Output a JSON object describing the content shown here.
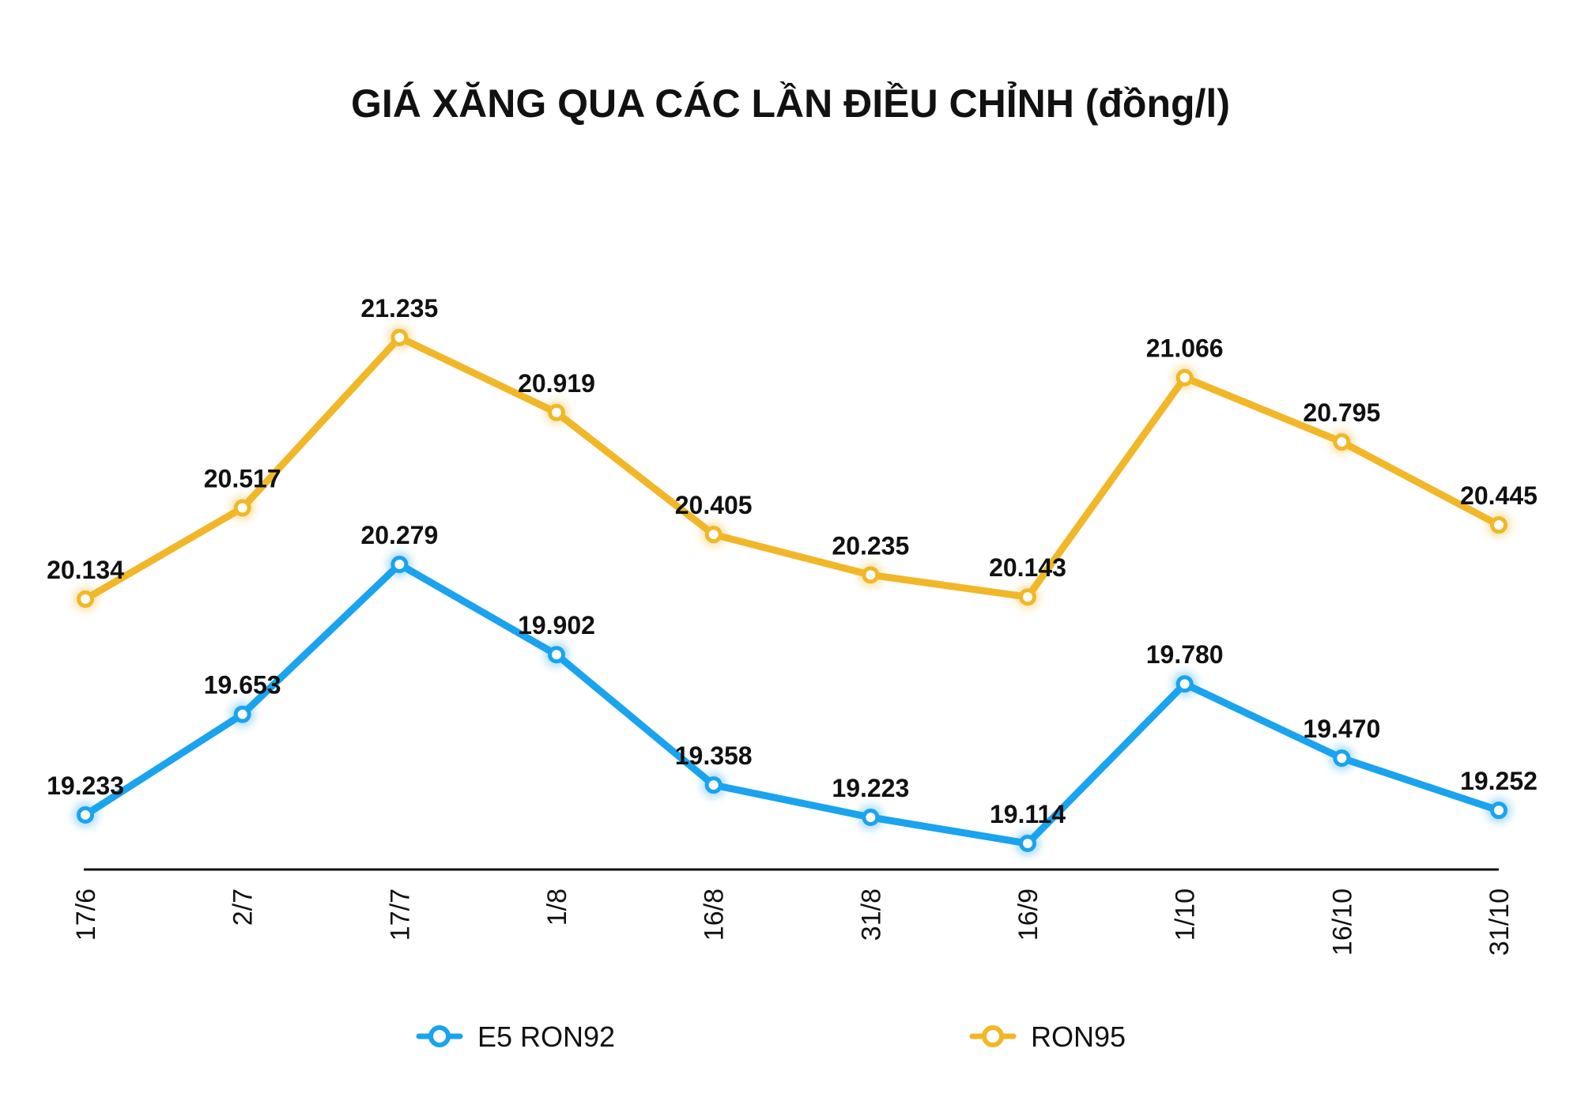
{
  "chart_data": {
    "type": "line",
    "title": "GIÁ XĂNG QUA CÁC LẦN ĐIỀU CHỈNH (đồng/l)",
    "xlabel": "",
    "ylabel": "",
    "categories": [
      "17/6",
      "2/7",
      "17/7",
      "1/8",
      "16/8",
      "31/8",
      "16/9",
      "1/10",
      "16/10",
      "31/10"
    ],
    "series": [
      {
        "name": "E5 RON92",
        "color": "#1aa3ef",
        "values": [
          19233,
          19653,
          20279,
          19902,
          19358,
          19223,
          19114,
          19780,
          19470,
          19252
        ],
        "labels": [
          "19.233",
          "19.653",
          "20.279",
          "19.902",
          "19.358",
          "19.223",
          "19.114",
          "19.780",
          "19.470",
          "19.252"
        ]
      },
      {
        "name": "RON95",
        "color": "#f2b728",
        "values": [
          20134,
          20517,
          21235,
          20919,
          20405,
          20235,
          20143,
          21066,
          20795,
          20445
        ],
        "labels": [
          "20.134",
          "20.517",
          "21.235",
          "20.919",
          "20.405",
          "20.235",
          "20.143",
          "21.066",
          "20.795",
          "20.445"
        ]
      }
    ],
    "grid": false,
    "legend_position": "bottom",
    "x_tick_rotation": "vertical"
  }
}
